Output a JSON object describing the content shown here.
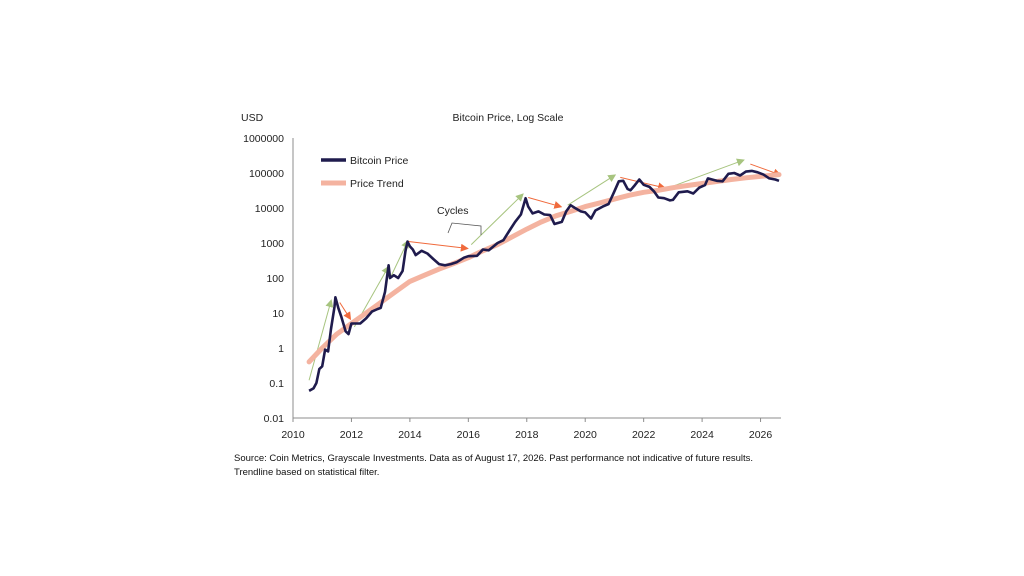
{
  "chart_data": {
    "type": "line",
    "title": "Bitcoin Price, Log Scale",
    "ylabel": "USD",
    "xlabel": "",
    "y_scale": "log",
    "ylim": [
      0.01,
      1000000
    ],
    "xlim": [
      2010,
      2026.7
    ],
    "grid": false,
    "legend_position": "top-left",
    "y_ticks": [
      "0.01",
      "0.1",
      "1",
      "10",
      "100",
      "1000",
      "10000",
      "100000",
      "1000000"
    ],
    "x_ticks": [
      "2010",
      "2012",
      "2014",
      "2016",
      "2018",
      "2020",
      "2022",
      "2024",
      "2026"
    ],
    "series": [
      {
        "name": "Bitcoin Price",
        "color": "#1f1b4d",
        "points": [
          [
            2010.55,
            0.06
          ],
          [
            2010.7,
            0.07
          ],
          [
            2010.8,
            0.1
          ],
          [
            2010.9,
            0.25
          ],
          [
            2011.0,
            0.3
          ],
          [
            2011.1,
            0.9
          ],
          [
            2011.2,
            0.8
          ],
          [
            2011.3,
            3.5
          ],
          [
            2011.42,
            15
          ],
          [
            2011.45,
            28
          ],
          [
            2011.55,
            14
          ],
          [
            2011.65,
            8
          ],
          [
            2011.8,
            3
          ],
          [
            2011.9,
            2.5
          ],
          [
            2012.0,
            5
          ],
          [
            2012.3,
            5
          ],
          [
            2012.5,
            7
          ],
          [
            2012.7,
            11
          ],
          [
            2012.9,
            13
          ],
          [
            2013.0,
            14
          ],
          [
            2013.15,
            40
          ],
          [
            2013.27,
            230
          ],
          [
            2013.32,
            100
          ],
          [
            2013.45,
            120
          ],
          [
            2013.6,
            100
          ],
          [
            2013.75,
            160
          ],
          [
            2013.85,
            600
          ],
          [
            2013.92,
            1100
          ],
          [
            2014.0,
            800
          ],
          [
            2014.1,
            650
          ],
          [
            2014.2,
            450
          ],
          [
            2014.4,
            600
          ],
          [
            2014.6,
            500
          ],
          [
            2014.8,
            350
          ],
          [
            2015.0,
            250
          ],
          [
            2015.2,
            230
          ],
          [
            2015.4,
            250
          ],
          [
            2015.6,
            280
          ],
          [
            2015.85,
            380
          ],
          [
            2016.0,
            420
          ],
          [
            2016.3,
            430
          ],
          [
            2016.5,
            650
          ],
          [
            2016.7,
            620
          ],
          [
            2017.0,
            1000
          ],
          [
            2017.2,
            1200
          ],
          [
            2017.4,
            2200
          ],
          [
            2017.6,
            4000
          ],
          [
            2017.8,
            6500
          ],
          [
            2017.96,
            19000
          ],
          [
            2018.05,
            11000
          ],
          [
            2018.2,
            7000
          ],
          [
            2018.4,
            8000
          ],
          [
            2018.6,
            6500
          ],
          [
            2018.8,
            6300
          ],
          [
            2018.95,
            3500
          ],
          [
            2019.2,
            4000
          ],
          [
            2019.35,
            8000
          ],
          [
            2019.5,
            12000
          ],
          [
            2019.65,
            10000
          ],
          [
            2019.85,
            8000
          ],
          [
            2020.0,
            7500
          ],
          [
            2020.2,
            5000
          ],
          [
            2020.35,
            8500
          ],
          [
            2020.6,
            11000
          ],
          [
            2020.8,
            13000
          ],
          [
            2021.0,
            30000
          ],
          [
            2021.15,
            58000
          ],
          [
            2021.3,
            60000
          ],
          [
            2021.45,
            35000
          ],
          [
            2021.55,
            32000
          ],
          [
            2021.7,
            45000
          ],
          [
            2021.85,
            65000
          ],
          [
            2022.0,
            46000
          ],
          [
            2022.2,
            40000
          ],
          [
            2022.35,
            30000
          ],
          [
            2022.5,
            20000
          ],
          [
            2022.7,
            19000
          ],
          [
            2022.9,
            16500
          ],
          [
            2023.0,
            17000
          ],
          [
            2023.2,
            28000
          ],
          [
            2023.5,
            30000
          ],
          [
            2023.7,
            26000
          ],
          [
            2023.9,
            38000
          ],
          [
            2024.1,
            45000
          ],
          [
            2024.2,
            70000
          ],
          [
            2024.5,
            60000
          ],
          [
            2024.7,
            58000
          ],
          [
            2024.9,
            95000
          ],
          [
            2025.1,
            100000
          ],
          [
            2025.3,
            85000
          ],
          [
            2025.5,
            110000
          ],
          [
            2025.7,
            115000
          ],
          [
            2025.9,
            105000
          ],
          [
            2026.1,
            90000
          ],
          [
            2026.3,
            70000
          ],
          [
            2026.5,
            65000
          ],
          [
            2026.63,
            60000
          ]
        ]
      },
      {
        "name": "Price Trend",
        "color": "#f4b3a0",
        "points": [
          [
            2010.55,
            0.4
          ],
          [
            2011.0,
            1
          ],
          [
            2011.5,
            2.5
          ],
          [
            2012.0,
            5
          ],
          [
            2012.5,
            10
          ],
          [
            2013.0,
            20
          ],
          [
            2013.5,
            40
          ],
          [
            2014.0,
            80
          ],
          [
            2014.5,
            120
          ],
          [
            2015.0,
            180
          ],
          [
            2015.5,
            260
          ],
          [
            2016.0,
            380
          ],
          [
            2016.5,
            600
          ],
          [
            2017.0,
            900
          ],
          [
            2017.5,
            1500
          ],
          [
            2018.0,
            2500
          ],
          [
            2018.5,
            4000
          ],
          [
            2019.0,
            6000
          ],
          [
            2019.5,
            8000
          ],
          [
            2020.0,
            11000
          ],
          [
            2020.5,
            14000
          ],
          [
            2021.0,
            18000
          ],
          [
            2021.5,
            23000
          ],
          [
            2022.0,
            28000
          ],
          [
            2022.5,
            32000
          ],
          [
            2023.0,
            38000
          ],
          [
            2023.5,
            44000
          ],
          [
            2024.0,
            50000
          ],
          [
            2024.5,
            57000
          ],
          [
            2025.0,
            65000
          ],
          [
            2025.5,
            73000
          ],
          [
            2026.0,
            80000
          ],
          [
            2026.63,
            90000
          ]
        ]
      }
    ],
    "annotations": [
      {
        "text": "Cycles"
      }
    ],
    "cycle_arrows": [
      {
        "kind": "up",
        "color": "#a7c47f",
        "from": [
          2010.55,
          0.12
        ],
        "to": [
          2011.3,
          22
        ]
      },
      {
        "kind": "down",
        "color": "#f06a3c",
        "from": [
          2011.6,
          20
        ],
        "to": [
          2011.95,
          7
        ]
      },
      {
        "kind": "up",
        "color": "#a7c47f",
        "from": [
          2012.1,
          4
        ],
        "to": [
          2013.25,
          200
        ]
      },
      {
        "kind": "up",
        "color": "#a7c47f",
        "from": [
          2013.3,
          90
        ],
        "to": [
          2013.92,
          1100
        ]
      },
      {
        "kind": "down",
        "color": "#f06a3c",
        "from": [
          2013.95,
          1100
        ],
        "to": [
          2015.95,
          700
        ]
      },
      {
        "kind": "up",
        "color": "#a7c47f",
        "from": [
          2016.1,
          900
        ],
        "to": [
          2017.85,
          24000
        ]
      },
      {
        "kind": "down",
        "color": "#f06a3c",
        "from": [
          2018.05,
          20000
        ],
        "to": [
          2019.15,
          11000
        ]
      },
      {
        "kind": "up",
        "color": "#a7c47f",
        "from": [
          2019.4,
          12000
        ],
        "to": [
          2021.0,
          85000
        ]
      },
      {
        "kind": "down",
        "color": "#f06a3c",
        "from": [
          2021.2,
          75000
        ],
        "to": [
          2022.7,
          38000
        ]
      },
      {
        "kind": "up",
        "color": "#a7c47f",
        "from": [
          2023.0,
          42000
        ],
        "to": [
          2025.4,
          230000
        ]
      },
      {
        "kind": "down",
        "color": "#f06a3c",
        "from": [
          2025.65,
          180000
        ],
        "to": [
          2026.65,
          90000
        ]
      }
    ]
  },
  "footer": {
    "line1": "Source: Coin Metrics, Grayscale Investments. Data as of August 17, 2026. Past performance not indicative of future results.",
    "line2": "Trendline based on statistical filter."
  }
}
